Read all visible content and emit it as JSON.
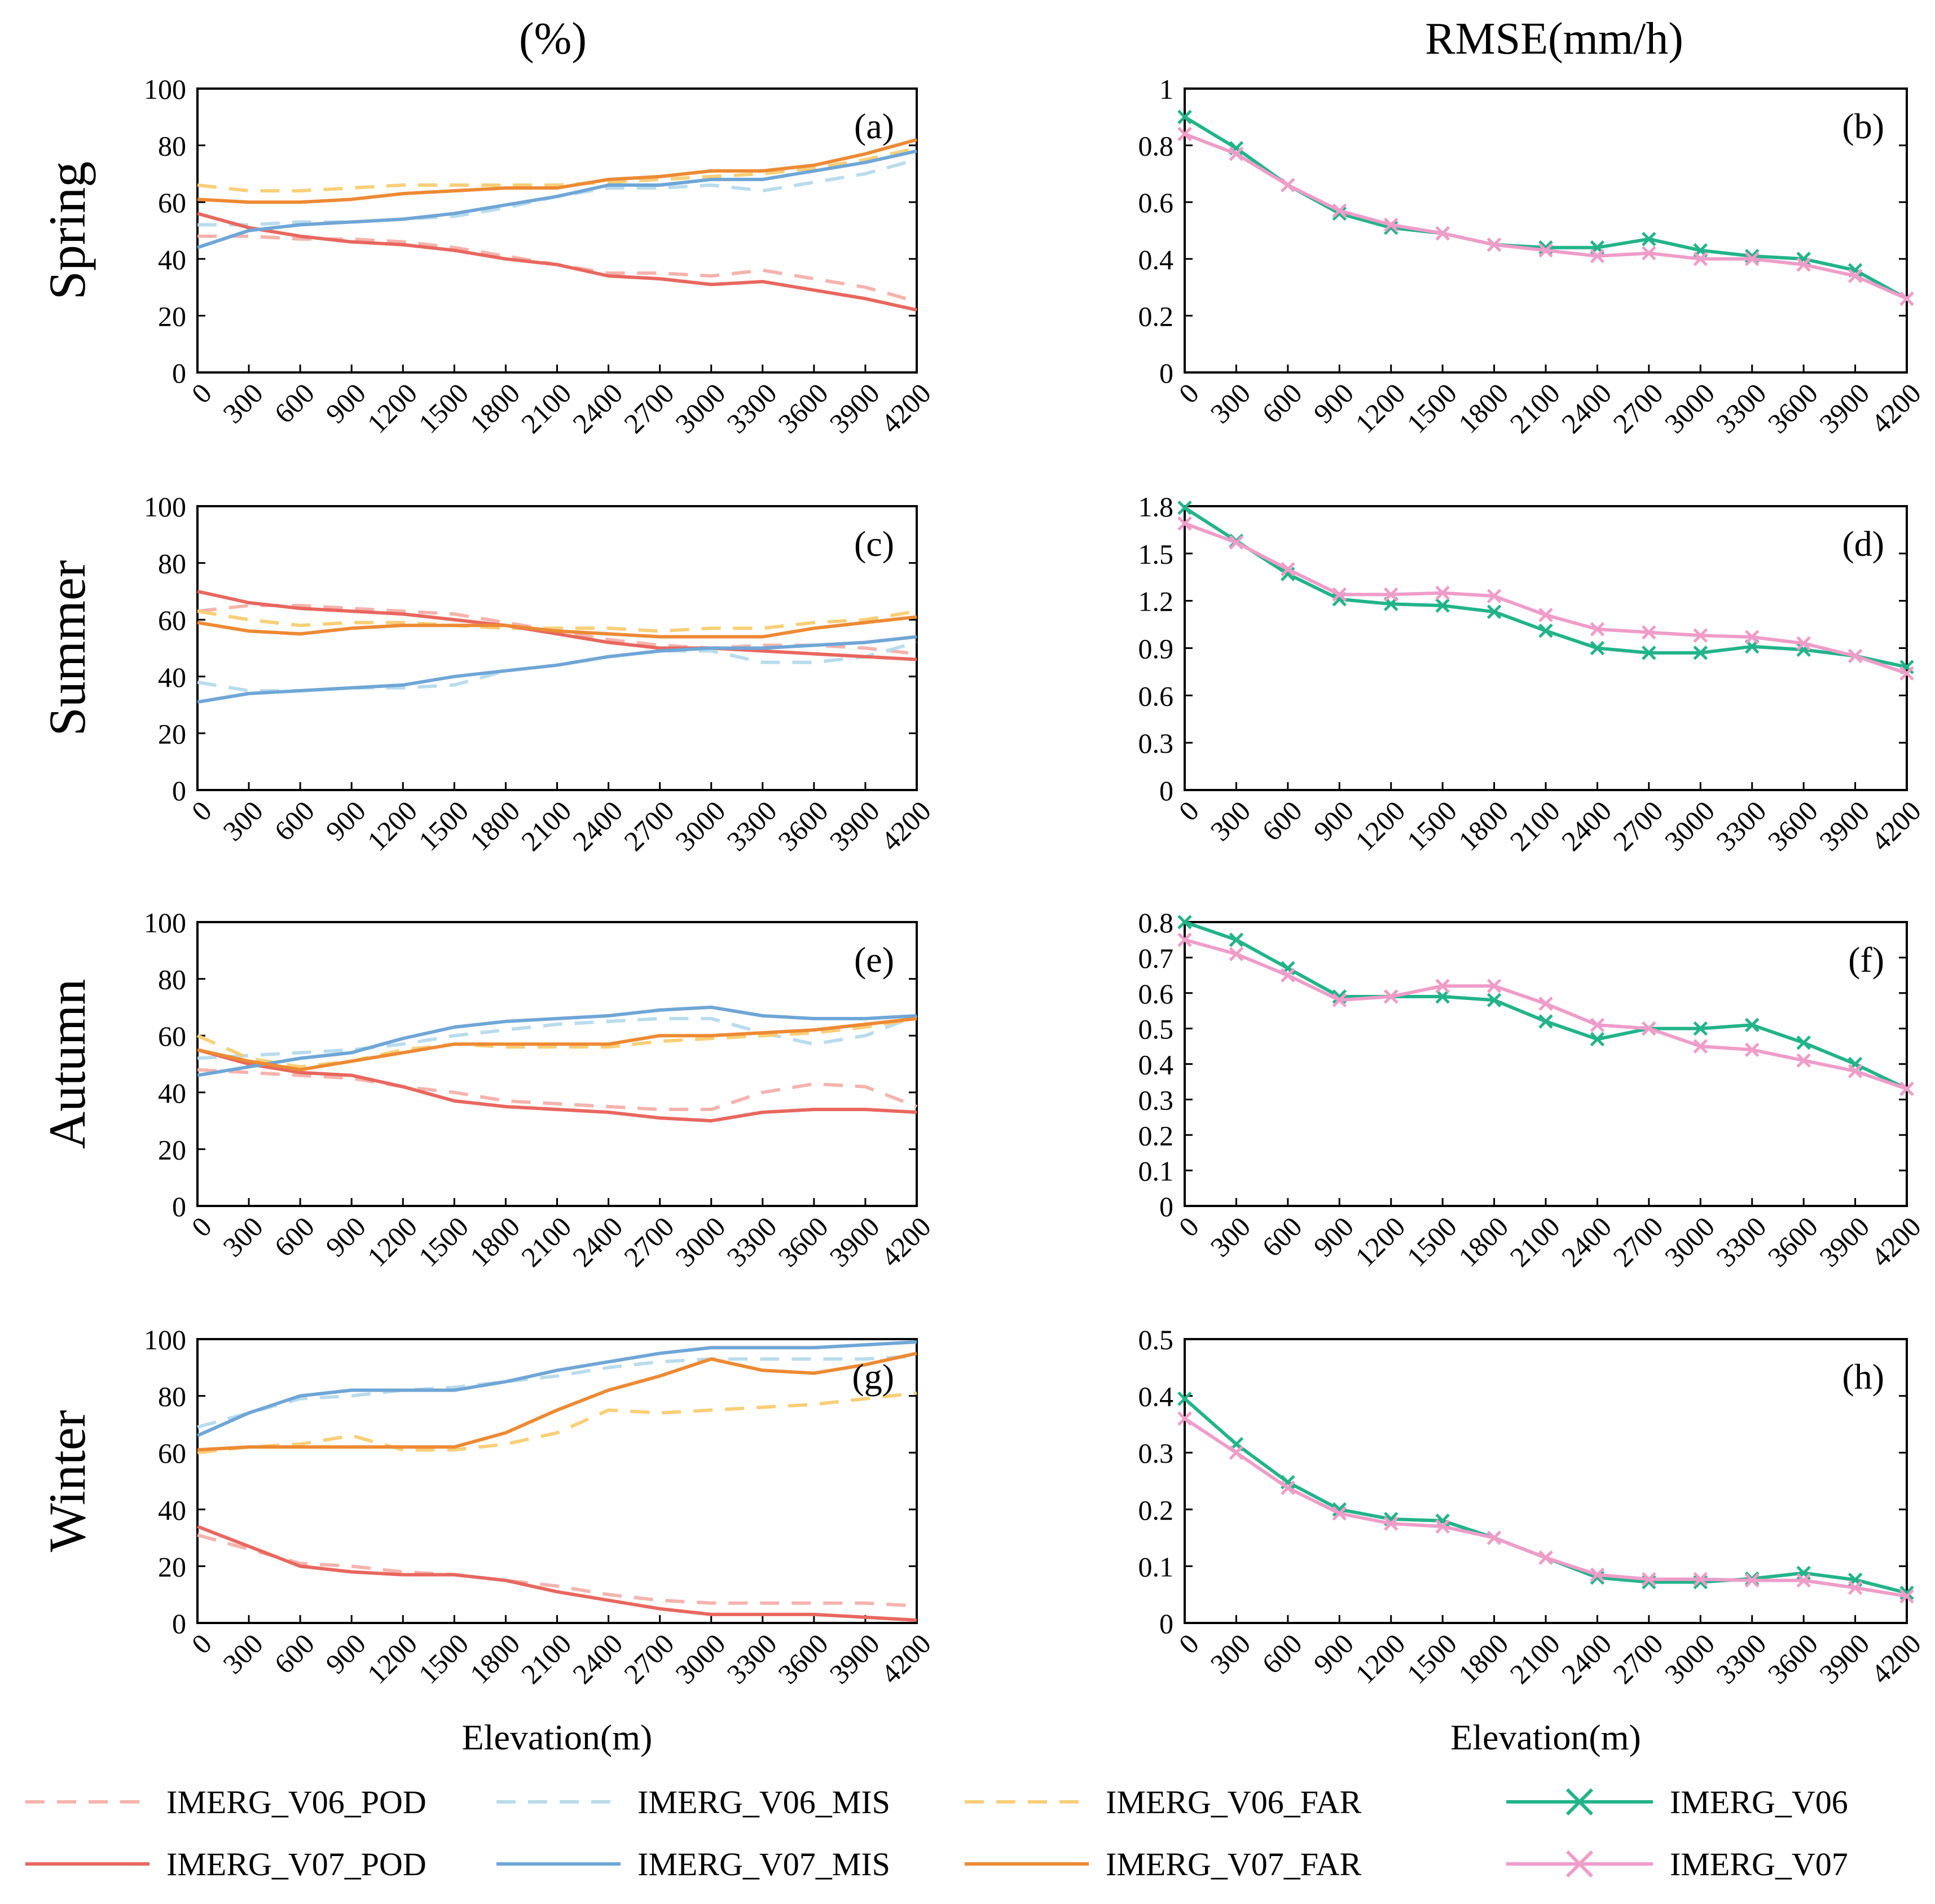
{
  "header": {
    "left_title": "(%)",
    "right_title": "RMSE(mm/h)"
  },
  "seasons": [
    "Spring",
    "Summer",
    "Autumn",
    "Winter"
  ],
  "xlabel": "Elevation(m)",
  "legend": {
    "items": [
      {
        "label": "IMERG_V06_POD",
        "color": "#f5b3ad",
        "style": "dashed",
        "marker": "none"
      },
      {
        "label": "IMERG_V06_MIS",
        "color": "#b9dcec",
        "style": "dashed",
        "marker": "none"
      },
      {
        "label": "IMERG_V06_FAR",
        "color": "#f8cf78",
        "style": "dashed",
        "marker": "none"
      },
      {
        "label": "IMERG_V06",
        "color": "#22b38a",
        "style": "solid",
        "marker": "x"
      },
      {
        "label": "IMERG_V07_POD",
        "color": "#e8675f",
        "style": "solid",
        "marker": "none"
      },
      {
        "label": "IMERG_V07_MIS",
        "color": "#6fa6d6",
        "style": "solid",
        "marker": "none"
      },
      {
        "label": "IMERG_V07_FAR",
        "color": "#ed8a34",
        "style": "solid",
        "marker": "none"
      },
      {
        "label": "IMERG_V07",
        "color": "#ef9cc9",
        "style": "solid",
        "marker": "x"
      }
    ]
  },
  "chart_data": [
    {
      "panel": "(a)",
      "type": "line",
      "season": "Spring",
      "metric": "%",
      "x": [
        0,
        300,
        600,
        900,
        1200,
        1500,
        1800,
        2100,
        2400,
        2700,
        3000,
        3300,
        3600,
        3900,
        4200
      ],
      "xlim": [
        0,
        4200
      ],
      "ylim": [
        0,
        100
      ],
      "yticks": [
        0,
        20,
        40,
        60,
        80,
        100
      ],
      "ytick_labels": [
        "0",
        "20",
        "40",
        "60",
        "80",
        "100"
      ],
      "series": [
        {
          "name": "IMERG_V06_POD",
          "values": [
            48,
            48,
            47,
            47,
            46,
            44,
            41,
            38,
            35,
            35,
            34,
            36,
            33,
            30,
            25
          ]
        },
        {
          "name": "IMERG_V06_MIS",
          "values": [
            52,
            52,
            53,
            53,
            54,
            55,
            58,
            62,
            65,
            65,
            66,
            64,
            67,
            70,
            75
          ]
        },
        {
          "name": "IMERG_V06_FAR",
          "values": [
            66,
            64,
            64,
            65,
            66,
            66,
            66,
            66,
            67,
            68,
            69,
            70,
            72,
            75,
            79
          ]
        },
        {
          "name": "IMERG_V07_POD",
          "values": [
            56,
            51,
            48,
            46,
            45,
            43,
            40,
            38,
            34,
            33,
            31,
            32,
            29,
            26,
            22
          ]
        },
        {
          "name": "IMERG_V07_MIS",
          "values": [
            44,
            50,
            52,
            53,
            54,
            56,
            59,
            62,
            66,
            66,
            68,
            68,
            71,
            74,
            78
          ]
        },
        {
          "name": "IMERG_V07_FAR",
          "values": [
            61,
            60,
            60,
            61,
            63,
            64,
            65,
            65,
            68,
            69,
            71,
            71,
            73,
            77,
            82
          ]
        }
      ]
    },
    {
      "panel": "(b)",
      "type": "line",
      "season": "Spring",
      "metric": "RMSE(mm/h)",
      "x": [
        0,
        300,
        600,
        900,
        1200,
        1500,
        1800,
        2100,
        2400,
        2700,
        3000,
        3300,
        3600,
        3900,
        4200
      ],
      "xlim": [
        0,
        4200
      ],
      "ylim": [
        0,
        1
      ],
      "yticks": [
        0,
        0.2,
        0.4,
        0.6,
        0.8,
        1
      ],
      "ytick_labels": [
        "0",
        "0.2",
        "0.4",
        "0.6",
        "0.8",
        "1"
      ],
      "series": [
        {
          "name": "IMERG_V06",
          "values": [
            0.9,
            0.79,
            0.66,
            0.56,
            0.51,
            0.49,
            0.45,
            0.44,
            0.44,
            0.47,
            0.43,
            0.41,
            0.4,
            0.36,
            0.26
          ]
        },
        {
          "name": "IMERG_V07",
          "values": [
            0.84,
            0.77,
            0.66,
            0.57,
            0.52,
            0.49,
            0.45,
            0.43,
            0.41,
            0.42,
            0.4,
            0.4,
            0.38,
            0.34,
            0.26
          ]
        }
      ]
    },
    {
      "panel": "(c)",
      "type": "line",
      "season": "Summer",
      "metric": "%",
      "x": [
        0,
        300,
        600,
        900,
        1200,
        1500,
        1800,
        2100,
        2400,
        2700,
        3000,
        3300,
        3600,
        3900,
        4200
      ],
      "xlim": [
        0,
        4200
      ],
      "ylim": [
        0,
        100
      ],
      "yticks": [
        0,
        20,
        40,
        60,
        80,
        100
      ],
      "ytick_labels": [
        "0",
        "20",
        "40",
        "60",
        "80",
        "100"
      ],
      "series": [
        {
          "name": "IMERG_V06_POD",
          "values": [
            63,
            65,
            65,
            64,
            63,
            62,
            59,
            56,
            53,
            51,
            50,
            51,
            51,
            50,
            48
          ]
        },
        {
          "name": "IMERG_V06_MIS",
          "values": [
            38,
            35,
            35,
            36,
            36,
            37,
            42,
            44,
            47,
            49,
            49,
            45,
            45,
            47,
            52
          ]
        },
        {
          "name": "IMERG_V06_FAR",
          "values": [
            63,
            60,
            58,
            59,
            59,
            58,
            57,
            57,
            57,
            56,
            57,
            57,
            59,
            60,
            63
          ]
        },
        {
          "name": "IMERG_V07_POD",
          "values": [
            70,
            66,
            64,
            63,
            62,
            60,
            58,
            55,
            52,
            50,
            50,
            49,
            48,
            47,
            46
          ]
        },
        {
          "name": "IMERG_V07_MIS",
          "values": [
            31,
            34,
            35,
            36,
            37,
            40,
            42,
            44,
            47,
            49,
            50,
            50,
            51,
            52,
            54
          ]
        },
        {
          "name": "IMERG_V07_FAR",
          "values": [
            59,
            56,
            55,
            57,
            58,
            58,
            58,
            56,
            55,
            54,
            54,
            54,
            57,
            59,
            61
          ]
        }
      ]
    },
    {
      "panel": "(d)",
      "type": "line",
      "season": "Summer",
      "metric": "RMSE(mm/h)",
      "x": [
        0,
        300,
        600,
        900,
        1200,
        1500,
        1800,
        2100,
        2400,
        2700,
        3000,
        3300,
        3600,
        3900,
        4200
      ],
      "xlim": [
        0,
        4200
      ],
      "ylim": [
        0,
        1.8
      ],
      "yticks": [
        0,
        0.3,
        0.6,
        0.9,
        1.2,
        1.5,
        1.8
      ],
      "ytick_labels": [
        "0",
        "0.3",
        "0.6",
        "0.9",
        "1.2",
        "1.5",
        "1.8"
      ],
      "series": [
        {
          "name": "IMERG_V06",
          "values": [
            1.79,
            1.58,
            1.37,
            1.21,
            1.18,
            1.17,
            1.13,
            1.01,
            0.9,
            0.87,
            0.87,
            0.91,
            0.89,
            0.85,
            0.78
          ]
        },
        {
          "name": "IMERG_V07",
          "values": [
            1.69,
            1.57,
            1.4,
            1.24,
            1.24,
            1.25,
            1.23,
            1.11,
            1.02,
            1.0,
            0.98,
            0.97,
            0.93,
            0.85,
            0.74
          ]
        }
      ]
    },
    {
      "panel": "(e)",
      "type": "line",
      "season": "Autumn",
      "metric": "%",
      "x": [
        0,
        300,
        600,
        900,
        1200,
        1500,
        1800,
        2100,
        2400,
        2700,
        3000,
        3300,
        3600,
        3900,
        4200
      ],
      "xlim": [
        0,
        4200
      ],
      "ylim": [
        0,
        100
      ],
      "yticks": [
        0,
        20,
        40,
        60,
        80,
        100
      ],
      "ytick_labels": [
        "0",
        "20",
        "40",
        "60",
        "80",
        "100"
      ],
      "series": [
        {
          "name": "IMERG_V06_POD",
          "values": [
            48,
            47,
            46,
            45,
            42,
            40,
            37,
            36,
            35,
            34,
            34,
            40,
            43,
            42,
            35
          ]
        },
        {
          "name": "IMERG_V06_MIS",
          "values": [
            52,
            53,
            54,
            55,
            57,
            60,
            62,
            64,
            65,
            66,
            66,
            61,
            57,
            60,
            67
          ]
        },
        {
          "name": "IMERG_V06_FAR",
          "values": [
            60,
            52,
            49,
            51,
            55,
            57,
            56,
            56,
            56,
            58,
            59,
            60,
            61,
            63,
            66
          ]
        },
        {
          "name": "IMERG_V07_POD",
          "values": [
            55,
            50,
            47,
            46,
            42,
            37,
            35,
            34,
            33,
            31,
            30,
            33,
            34,
            34,
            33
          ]
        },
        {
          "name": "IMERG_V07_MIS",
          "values": [
            46,
            49,
            52,
            54,
            59,
            63,
            65,
            66,
            67,
            69,
            70,
            67,
            66,
            66,
            67
          ]
        },
        {
          "name": "IMERG_V07_FAR",
          "values": [
            55,
            51,
            48,
            51,
            54,
            57,
            57,
            57,
            57,
            60,
            60,
            61,
            62,
            64,
            66
          ]
        }
      ]
    },
    {
      "panel": "(f)",
      "type": "line",
      "season": "Autumn",
      "metric": "RMSE(mm/h)",
      "x": [
        0,
        300,
        600,
        900,
        1200,
        1500,
        1800,
        2100,
        2400,
        2700,
        3000,
        3300,
        3600,
        3900,
        4200
      ],
      "xlim": [
        0,
        4200
      ],
      "ylim": [
        0,
        0.8
      ],
      "yticks": [
        0,
        0.1,
        0.2,
        0.3,
        0.4,
        0.5,
        0.6,
        0.7,
        0.8
      ],
      "ytick_labels": [
        "0",
        "0.1",
        "0.2",
        "0.3",
        "0.4",
        "0.5",
        "0.6",
        "0.7",
        "0.8"
      ],
      "series": [
        {
          "name": "IMERG_V06",
          "values": [
            0.8,
            0.75,
            0.67,
            0.59,
            0.59,
            0.59,
            0.58,
            0.52,
            0.47,
            0.5,
            0.5,
            0.51,
            0.46,
            0.4,
            0.33
          ]
        },
        {
          "name": "IMERG_V07",
          "values": [
            0.75,
            0.71,
            0.65,
            0.58,
            0.59,
            0.62,
            0.62,
            0.57,
            0.51,
            0.5,
            0.45,
            0.44,
            0.41,
            0.38,
            0.33
          ]
        }
      ]
    },
    {
      "panel": "(g)",
      "type": "line",
      "season": "Winter",
      "metric": "%",
      "x": [
        0,
        300,
        600,
        900,
        1200,
        1500,
        1800,
        2100,
        2400,
        2700,
        3000,
        3300,
        3600,
        3900,
        4200
      ],
      "xlim": [
        0,
        4200
      ],
      "ylim": [
        0,
        100
      ],
      "yticks": [
        0,
        20,
        40,
        60,
        80,
        100
      ],
      "ytick_labels": [
        "0",
        "20",
        "40",
        "60",
        "80",
        "100"
      ],
      "series": [
        {
          "name": "IMERG_V06_POD",
          "values": [
            31,
            26,
            21,
            20,
            18,
            17,
            15,
            13,
            10,
            8,
            7,
            7,
            7,
            7,
            6
          ]
        },
        {
          "name": "IMERG_V06_MIS",
          "values": [
            69,
            74,
            79,
            80,
            82,
            83,
            85,
            87,
            90,
            92,
            93,
            93,
            93,
            93,
            94
          ]
        },
        {
          "name": "IMERG_V06_FAR",
          "values": [
            60,
            62,
            63,
            66,
            61,
            61,
            63,
            67,
            75,
            74,
            75,
            76,
            77,
            79,
            81
          ]
        },
        {
          "name": "IMERG_V07_POD",
          "values": [
            34,
            27,
            20,
            18,
            17,
            17,
            15,
            11,
            8,
            5,
            3,
            3,
            3,
            2,
            1
          ]
        },
        {
          "name": "IMERG_V07_MIS",
          "values": [
            66,
            74,
            80,
            82,
            82,
            82,
            85,
            89,
            92,
            95,
            97,
            97,
            97,
            98,
            99
          ]
        },
        {
          "name": "IMERG_V07_FAR",
          "values": [
            61,
            62,
            62,
            62,
            62,
            62,
            67,
            75,
            82,
            87,
            93,
            89,
            88,
            91,
            95
          ]
        }
      ]
    },
    {
      "panel": "(h)",
      "type": "line",
      "season": "Winter",
      "metric": "RMSE(mm/h)",
      "x": [
        0,
        300,
        600,
        900,
        1200,
        1500,
        1800,
        2100,
        2400,
        2700,
        3000,
        3300,
        3600,
        3900,
        4200
      ],
      "xlim": [
        0,
        4200
      ],
      "ylim": [
        0,
        0.5
      ],
      "yticks": [
        0,
        0.1,
        0.2,
        0.3,
        0.4,
        0.5
      ],
      "ytick_labels": [
        "0",
        "0.1",
        "0.2",
        "0.3",
        "0.4",
        "0.5"
      ],
      "series": [
        {
          "name": "IMERG_V06",
          "values": [
            0.395,
            0.315,
            0.248,
            0.2,
            0.183,
            0.18,
            0.15,
            0.115,
            0.08,
            0.072,
            0.072,
            0.078,
            0.088,
            0.076,
            0.053
          ]
        },
        {
          "name": "IMERG_V07",
          "values": [
            0.36,
            0.3,
            0.238,
            0.193,
            0.175,
            0.17,
            0.15,
            0.115,
            0.085,
            0.077,
            0.077,
            0.075,
            0.075,
            0.062,
            0.047
          ]
        }
      ]
    }
  ]
}
